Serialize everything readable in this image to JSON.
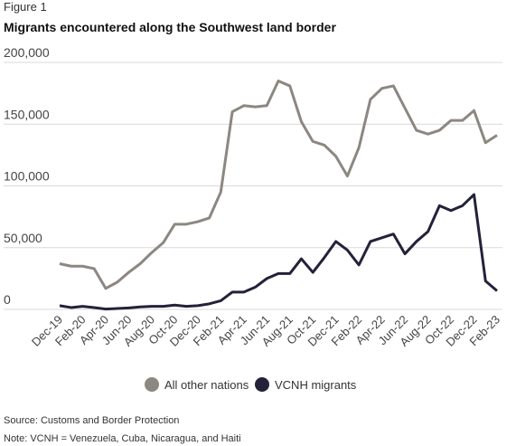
{
  "chart_data": {
    "type": "line",
    "label": "Figure 1",
    "title": "Migrants encountered along the Southwest land border",
    "categories": [
      "Dec-19",
      null,
      "Feb-20",
      null,
      "Apr-20",
      null,
      "Jun-20",
      null,
      "Aug-20",
      null,
      "Oct-20",
      null,
      "Dec-20",
      null,
      "Feb-21",
      null,
      "Apr-21",
      null,
      "Jun-21",
      null,
      "Aug-21",
      null,
      "Oct-21",
      null,
      "Dec-21",
      null,
      "Feb-22",
      null,
      "Apr-22",
      null,
      "Jun-22",
      null,
      "Aug-22",
      null,
      "Oct-22",
      null,
      "Dec-22",
      null,
      "Feb-23"
    ],
    "series": [
      {
        "name": "All other nations",
        "color": "#8c8780",
        "values": [
          37000,
          35000,
          35000,
          33000,
          17000,
          22000,
          30000,
          37000,
          46000,
          54000,
          69000,
          69000,
          71000,
          74000,
          95000,
          160000,
          165000,
          164000,
          165000,
          185000,
          181000,
          152000,
          136000,
          133000,
          124000,
          108000,
          131000,
          170000,
          179000,
          181000,
          163000,
          145000,
          142000,
          145000,
          153000,
          153000,
          161000,
          135000,
          141000
        ]
      },
      {
        "name": "VCNH migrants",
        "color": "#23223a",
        "values": [
          3000,
          1500,
          2500,
          1500,
          300,
          700,
          1200,
          2000,
          2500,
          2500,
          3500,
          2500,
          3000,
          4500,
          7000,
          14000,
          14000,
          18000,
          25000,
          29000,
          29000,
          41000,
          30000,
          42000,
          55000,
          48000,
          36000,
          55000,
          58000,
          61000,
          45000,
          55000,
          63000,
          84000,
          80000,
          84000,
          93000,
          23000,
          15000
        ]
      }
    ],
    "ylim": [
      0,
      200000
    ],
    "yticks": [
      0,
      {
        "value": 50000,
        "label": "50,000"
      },
      {
        "value": 100000,
        "label": "100,000"
      },
      {
        "value": 150000,
        "label": "150,000"
      },
      {
        "value": 200000,
        "label": "200,000"
      }
    ],
    "grid": true,
    "legend": "bottom",
    "source": "Source: Customs and Border Protection",
    "note": "Note: VCNH = Venezuela, Cuba, Nicaragua, and Haiti"
  }
}
